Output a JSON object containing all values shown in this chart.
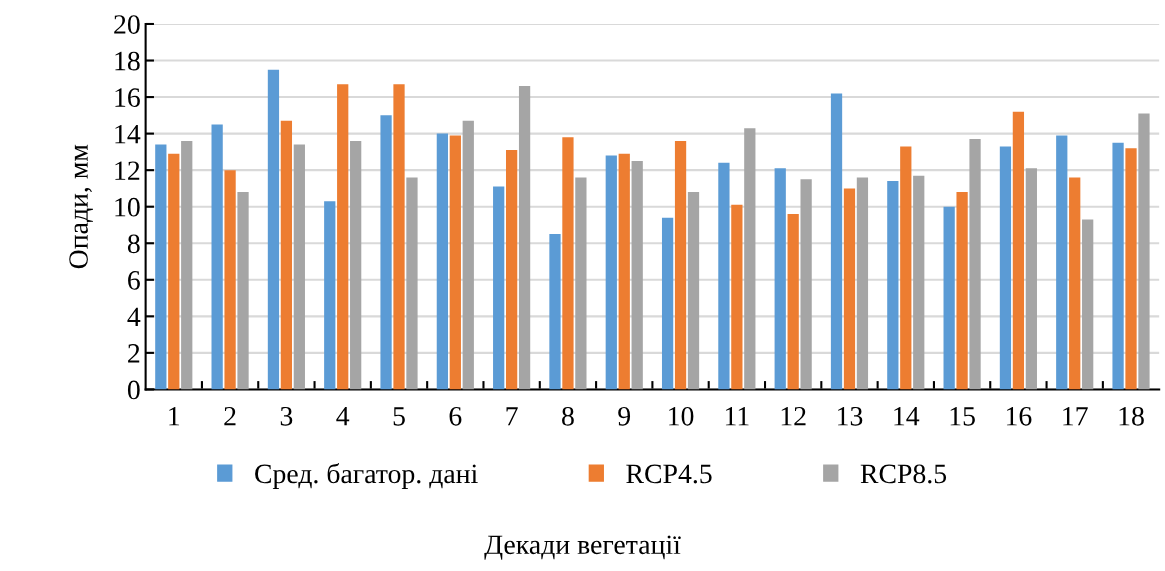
{
  "chart_data": {
    "type": "bar",
    "xlabel": "Декади вегетації",
    "ylabel": "Опади, мм",
    "categories": [
      "1",
      "2",
      "3",
      "4",
      "5",
      "6",
      "7",
      "8",
      "9",
      "10",
      "11",
      "12",
      "13",
      "14",
      "15",
      "16",
      "17",
      "18"
    ],
    "series": [
      {
        "name": "Сред. багатор. дані",
        "color": "#5b9bd5",
        "values": [
          13.4,
          14.5,
          17.5,
          10.3,
          15.0,
          14.0,
          11.1,
          8.5,
          12.8,
          9.4,
          12.4,
          12.1,
          16.2,
          11.4,
          10.0,
          13.3,
          13.9,
          13.5
        ]
      },
      {
        "name": "RCP4.5",
        "color": "#ed7d31",
        "values": [
          12.9,
          12.0,
          14.7,
          16.7,
          16.7,
          13.9,
          13.1,
          13.8,
          12.9,
          13.6,
          10.1,
          9.6,
          11.0,
          13.3,
          10.8,
          15.2,
          11.6,
          13.2
        ]
      },
      {
        "name": "RCP8.5",
        "color": "#a5a5a5",
        "values": [
          13.6,
          10.8,
          13.4,
          13.6,
          11.6,
          14.7,
          16.6,
          11.6,
          12.5,
          10.8,
          14.3,
          11.5,
          11.6,
          11.7,
          13.7,
          12.1,
          9.3,
          15.1
        ]
      }
    ],
    "ylim": [
      0,
      20
    ],
    "yticks": [
      0,
      2,
      4,
      6,
      8,
      10,
      12,
      14,
      16,
      18,
      20
    ],
    "grid": "y",
    "legend": "bottom"
  }
}
